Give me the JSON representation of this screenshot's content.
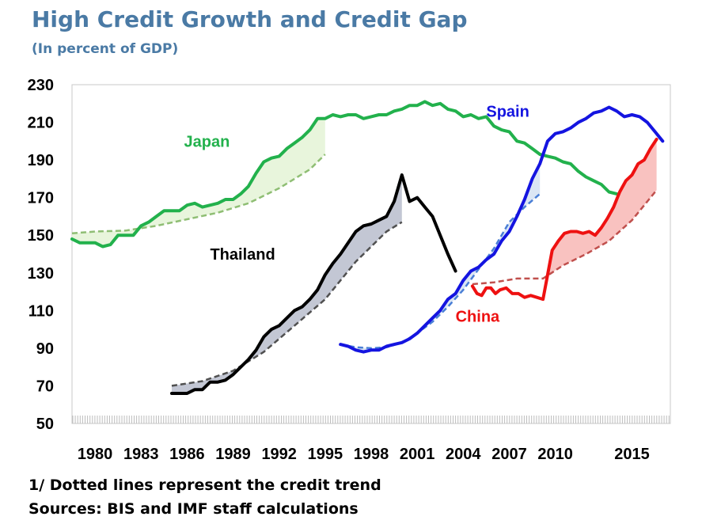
{
  "header": {
    "title": "High Credit Growth and Credit Gap",
    "subtitle": "(In percent of GDP)"
  },
  "footer": {
    "note1": "1/ Dotted lines represent the credit trend",
    "note2": "Sources: BIS and IMF staff calculations"
  },
  "colors": {
    "title": "#4a7aa5",
    "japan": "#22b14c",
    "japan_trend": "#8fbe74",
    "japan_fill": "#e4f3d6",
    "thailand": "#000000",
    "thailand_trend": "#505050",
    "thailand_fill": "#b8bdcc",
    "spain": "#1414e0",
    "spain_trend": "#4a7fd6",
    "spain_fill": "#d5e2f2",
    "china": "#ee1111",
    "china_trend": "#c0504d",
    "china_fill": "#f8b7b5"
  },
  "chart_data": {
    "type": "line",
    "title": "High Credit Growth and Credit Gap",
    "subtitle": "(In percent of GDP)",
    "xlim": [
      1978.5,
      2017.5
    ],
    "ylim": [
      50,
      230
    ],
    "yticks": [
      50,
      70,
      90,
      110,
      130,
      150,
      170,
      190,
      210,
      230
    ],
    "xtick_labels": [
      {
        "year": 1980,
        "label": "1980"
      },
      {
        "year": 1983,
        "label": "1983"
      },
      {
        "year": 1986,
        "label": "1986"
      },
      {
        "year": 1989,
        "label": "1989"
      },
      {
        "year": 1992,
        "label": "1992"
      },
      {
        "year": 1995,
        "label": "1995"
      },
      {
        "year": 1998,
        "label": "1998"
      },
      {
        "year": 2001,
        "label": "2001"
      },
      {
        "year": 2004,
        "label": "2004"
      },
      {
        "year": 2007,
        "label": "2007"
      },
      {
        "year": 2010,
        "label": "2010"
      },
      {
        "year": 2015,
        "label": "2015"
      }
    ],
    "grid": false,
    "legend": "none (inline labels)",
    "series": [
      {
        "name": "Japan",
        "color_key": "japan",
        "label_at": [
          1985.8,
          197
        ],
        "credit": [
          [
            1978.5,
            148
          ],
          [
            1979,
            146
          ],
          [
            1979.5,
            146
          ],
          [
            1980,
            146
          ],
          [
            1980.5,
            144
          ],
          [
            1981,
            145
          ],
          [
            1981.5,
            150
          ],
          [
            1982,
            150
          ],
          [
            1982.5,
            150
          ],
          [
            1983,
            155
          ],
          [
            1983.5,
            157
          ],
          [
            1984,
            160
          ],
          [
            1984.5,
            163
          ],
          [
            1985,
            163
          ],
          [
            1985.5,
            163
          ],
          [
            1986,
            166
          ],
          [
            1986.5,
            167
          ],
          [
            1987,
            165
          ],
          [
            1987.5,
            166
          ],
          [
            1988,
            167
          ],
          [
            1988.5,
            169
          ],
          [
            1989,
            169
          ],
          [
            1989.5,
            172
          ],
          [
            1990,
            176
          ],
          [
            1990.5,
            183
          ],
          [
            1991,
            189
          ],
          [
            1991.5,
            191
          ],
          [
            1992,
            192
          ],
          [
            1992.5,
            196
          ],
          [
            1993,
            199
          ],
          [
            1993.5,
            202
          ],
          [
            1994,
            206
          ],
          [
            1994.5,
            212
          ],
          [
            1995,
            212
          ],
          [
            1995.5,
            214
          ],
          [
            1996,
            213
          ],
          [
            1996.5,
            214
          ],
          [
            1997,
            214
          ],
          [
            1997.5,
            212
          ],
          [
            1998,
            213
          ],
          [
            1998.5,
            214
          ],
          [
            1999,
            214
          ],
          [
            1999.5,
            216
          ],
          [
            2000,
            217
          ],
          [
            2000.5,
            219
          ],
          [
            2001,
            219
          ],
          [
            2001.5,
            221
          ],
          [
            2002,
            219
          ],
          [
            2002.5,
            220
          ],
          [
            2003,
            217
          ],
          [
            2003.5,
            216
          ],
          [
            2004,
            213
          ],
          [
            2004.5,
            214
          ],
          [
            2005,
            212
          ],
          [
            2005.5,
            213
          ],
          [
            2006,
            208
          ],
          [
            2006.5,
            206
          ],
          [
            2007,
            205
          ],
          [
            2007.5,
            200
          ],
          [
            2008,
            199
          ],
          [
            2008.5,
            196
          ],
          [
            2009,
            193
          ],
          [
            2009.5,
            192
          ],
          [
            2010,
            191
          ],
          [
            2010.5,
            189
          ],
          [
            2011,
            188
          ],
          [
            2011.5,
            184
          ],
          [
            2012,
            181
          ],
          [
            2012.5,
            179
          ],
          [
            2013,
            177
          ],
          [
            2013.5,
            173
          ],
          [
            2014,
            172
          ]
        ],
        "trend": [
          [
            1978.5,
            151
          ],
          [
            1980,
            152
          ],
          [
            1982,
            152.5
          ],
          [
            1984,
            155
          ],
          [
            1986,
            158.5
          ],
          [
            1988,
            162
          ],
          [
            1990,
            167
          ],
          [
            1992,
            175
          ],
          [
            1994,
            185
          ],
          [
            1995,
            193
          ]
        ],
        "gap_end": 1995
      },
      {
        "name": "Thailand",
        "color_key": "thailand",
        "label_at": [
          1987.5,
          137
        ],
        "credit": [
          [
            1985,
            66
          ],
          [
            1985.5,
            66
          ],
          [
            1986,
            66
          ],
          [
            1986.5,
            68
          ],
          [
            1987,
            68
          ],
          [
            1987.5,
            72
          ],
          [
            1988,
            72
          ],
          [
            1988.5,
            73
          ],
          [
            1989,
            76
          ],
          [
            1989.5,
            80
          ],
          [
            1990,
            84
          ],
          [
            1990.5,
            89
          ],
          [
            1991,
            96
          ],
          [
            1991.5,
            100
          ],
          [
            1992,
            102
          ],
          [
            1992.5,
            106
          ],
          [
            1993,
            110
          ],
          [
            1993.5,
            112
          ],
          [
            1994,
            116
          ],
          [
            1994.5,
            121
          ],
          [
            1995,
            129
          ],
          [
            1995.5,
            135
          ],
          [
            1996,
            140
          ],
          [
            1996.5,
            146
          ],
          [
            1997,
            152
          ],
          [
            1997.5,
            155
          ],
          [
            1998,
            156
          ],
          [
            1998.5,
            158
          ],
          [
            1999,
            160
          ],
          [
            1999.5,
            168
          ],
          [
            2000,
            182
          ],
          [
            2000.5,
            168
          ],
          [
            2001,
            170
          ],
          [
            2001.5,
            165
          ],
          [
            2002,
            160
          ],
          [
            2002.5,
            150
          ],
          [
            2003,
            140
          ],
          [
            2003.5,
            131
          ]
        ],
        "trend": [
          [
            1985,
            70
          ],
          [
            1987,
            72.5
          ],
          [
            1989,
            78
          ],
          [
            1991,
            88
          ],
          [
            1993,
            102
          ],
          [
            1995,
            116
          ],
          [
            1997,
            136
          ],
          [
            1999,
            152
          ],
          [
            2000,
            157
          ]
        ],
        "gap_end": 2000
      },
      {
        "name": "Spain",
        "color_key": "spain",
        "label_at": [
          2005.5,
          213
        ],
        "credit": [
          [
            1996,
            92
          ],
          [
            1996.5,
            91
          ],
          [
            1997,
            89
          ],
          [
            1997.5,
            88
          ],
          [
            1998,
            89
          ],
          [
            1998.5,
            89
          ],
          [
            1999,
            91
          ],
          [
            1999.5,
            92
          ],
          [
            2000,
            93
          ],
          [
            2000.5,
            95
          ],
          [
            2001,
            98
          ],
          [
            2001.5,
            102
          ],
          [
            2002,
            106
          ],
          [
            2002.5,
            110
          ],
          [
            2003,
            116
          ],
          [
            2003.5,
            119
          ],
          [
            2004,
            126
          ],
          [
            2004.5,
            131
          ],
          [
            2005,
            133
          ],
          [
            2005.5,
            137
          ],
          [
            2006,
            140
          ],
          [
            2006.5,
            147
          ],
          [
            2007,
            152
          ],
          [
            2007.5,
            160
          ],
          [
            2008,
            169
          ],
          [
            2008.5,
            180
          ],
          [
            2009,
            188
          ],
          [
            2009.5,
            200
          ],
          [
            2010,
            204
          ],
          [
            2010.5,
            205
          ],
          [
            2011,
            207
          ],
          [
            2011.5,
            210
          ],
          [
            2012,
            212
          ],
          [
            2012.5,
            215
          ],
          [
            2013,
            216
          ],
          [
            2013.5,
            218
          ],
          [
            2014,
            216
          ],
          [
            2014.5,
            213
          ],
          [
            2015,
            214
          ],
          [
            2015.5,
            213
          ],
          [
            2016,
            210
          ],
          [
            2016.5,
            205
          ],
          [
            2017,
            200
          ]
        ],
        "trend": [
          [
            1996,
            92
          ],
          [
            1997,
            90.5
          ],
          [
            1998,
            90
          ],
          [
            1999,
            90.5
          ],
          [
            2000,
            93
          ],
          [
            2001,
            98
          ],
          [
            2002,
            104
          ],
          [
            2003,
            112
          ],
          [
            2004,
            121
          ],
          [
            2005,
            132
          ],
          [
            2006,
            143
          ],
          [
            2007,
            157
          ],
          [
            2008,
            165
          ],
          [
            2009,
            172
          ]
        ],
        "gap_end": 2009
      },
      {
        "name": "China",
        "color_key": "china",
        "label_at": [
          2003.5,
          104
        ],
        "credit": [
          [
            2004.6,
            123
          ],
          [
            2004.9,
            119
          ],
          [
            2005.2,
            118
          ],
          [
            2005.5,
            122
          ],
          [
            2005.8,
            122
          ],
          [
            2006.1,
            119
          ],
          [
            2006.4,
            121
          ],
          [
            2006.8,
            122
          ],
          [
            2007.2,
            119
          ],
          [
            2007.6,
            119
          ],
          [
            2008,
            117
          ],
          [
            2008.4,
            118
          ],
          [
            2008.8,
            117
          ],
          [
            2009.2,
            116
          ],
          [
            2009.5,
            129
          ],
          [
            2009.8,
            142
          ],
          [
            2010.2,
            147
          ],
          [
            2010.6,
            151
          ],
          [
            2011,
            152
          ],
          [
            2011.4,
            152
          ],
          [
            2011.8,
            151
          ],
          [
            2012.2,
            152
          ],
          [
            2012.6,
            150
          ],
          [
            2013,
            154
          ],
          [
            2013.4,
            159
          ],
          [
            2013.8,
            165
          ],
          [
            2014.2,
            173
          ],
          [
            2014.6,
            179
          ],
          [
            2015,
            182
          ],
          [
            2015.4,
            188
          ],
          [
            2015.8,
            190
          ],
          [
            2016.2,
            196
          ],
          [
            2016.6,
            201
          ]
        ],
        "trend": [
          [
            2004.6,
            124
          ],
          [
            2006,
            125
          ],
          [
            2007.5,
            127
          ],
          [
            2009.2,
            127
          ],
          [
            2010.5,
            134
          ],
          [
            2012,
            140
          ],
          [
            2013.5,
            147
          ],
          [
            2015,
            158
          ],
          [
            2016.6,
            174
          ]
        ],
        "gap_start": 2009.5,
        "gap_end": 2016.6
      }
    ]
  }
}
